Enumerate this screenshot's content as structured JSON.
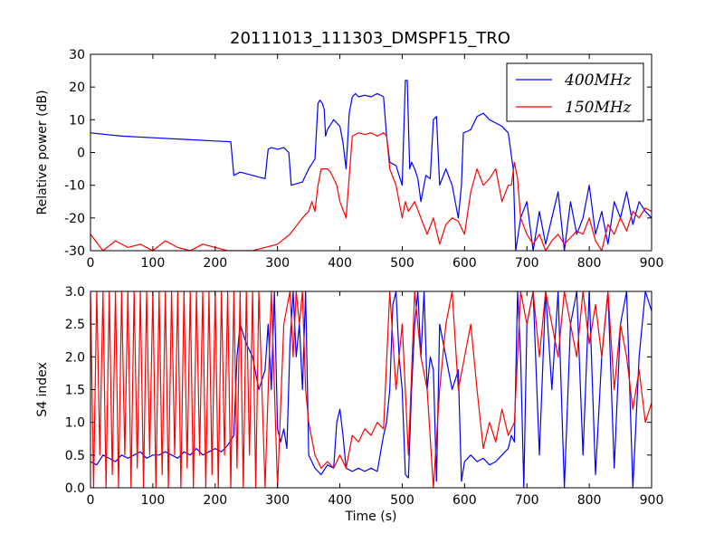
{
  "chart_data": [
    {
      "type": "line",
      "title": "20111013_111303_DMSPF15_TRO",
      "xlabel": "",
      "ylabel": "Relative power (dB)",
      "xlim": [
        0,
        900
      ],
      "ylim": [
        -30,
        30
      ],
      "xticks": [
        0,
        100,
        200,
        300,
        400,
        500,
        600,
        700,
        800,
        900
      ],
      "yticks": [
        -30,
        -20,
        -10,
        0,
        10,
        20,
        30
      ],
      "grid": false,
      "legend": "top-right",
      "series": [
        {
          "name": "400MHz",
          "color": "#0000ff",
          "x": [
            0,
            50,
            100,
            150,
            200,
            225,
            230,
            240,
            260,
            280,
            285,
            290,
            300,
            310,
            318,
            322,
            340,
            350,
            360,
            365,
            368,
            372,
            375,
            377,
            380,
            390,
            400,
            405,
            410,
            415,
            420,
            425,
            430,
            440,
            450,
            460,
            470,
            475,
            480,
            490,
            500,
            505,
            508,
            512,
            515,
            520,
            525,
            530,
            538,
            545,
            550,
            555,
            560,
            570,
            580,
            590,
            595,
            598,
            605,
            610,
            620,
            630,
            640,
            650,
            660,
            670,
            678,
            682,
            686,
            690,
            700,
            710,
            720,
            730,
            740,
            750,
            760,
            770,
            780,
            790,
            800,
            810,
            820,
            830,
            840,
            850,
            860,
            870,
            880,
            890,
            900
          ],
          "y": [
            6,
            5,
            4.5,
            4,
            3.5,
            3.3,
            -7,
            -6,
            -7,
            -8,
            1,
            1.5,
            1,
            1.5,
            0,
            -10,
            -9,
            -5,
            -2,
            15,
            16,
            15,
            13,
            5,
            7,
            10,
            8,
            3,
            -5,
            12,
            17,
            18,
            17,
            17.5,
            17,
            18,
            17,
            5,
            -3,
            -4,
            -10,
            22,
            22,
            -5,
            -3,
            -5,
            -8,
            -15,
            -7,
            -8,
            10,
            11,
            -10,
            -5,
            -10,
            -20,
            -10,
            6,
            6.5,
            7,
            11,
            12,
            10,
            9,
            8,
            6,
            -5,
            -30,
            -25,
            -20,
            -15,
            -30,
            -18,
            -28,
            -20,
            -12,
            -30,
            -15,
            -25,
            -20,
            -10,
            -25,
            -18,
            -28,
            -15,
            -20,
            -12,
            -22,
            -15,
            -18,
            -20
          ]
        },
        {
          "name": "150MHz",
          "color": "#ff0000",
          "x": [
            0,
            20,
            40,
            60,
            80,
            100,
            120,
            140,
            160,
            180,
            200,
            220,
            240,
            260,
            280,
            300,
            320,
            340,
            350,
            355,
            360,
            365,
            370,
            380,
            385,
            390,
            395,
            400,
            410,
            420,
            430,
            440,
            450,
            460,
            470,
            475,
            480,
            490,
            500,
            505,
            510,
            520,
            530,
            540,
            550,
            560,
            570,
            580,
            590,
            600,
            610,
            620,
            630,
            640,
            650,
            660,
            670,
            675,
            680,
            685,
            690,
            700,
            710,
            720,
            730,
            740,
            750,
            760,
            770,
            780,
            790,
            800,
            810,
            820,
            830,
            840,
            850,
            860,
            870,
            880,
            890,
            900
          ],
          "y": [
            -25,
            -30,
            -27,
            -29,
            -28,
            -30,
            -27,
            -29,
            -30,
            -28,
            -29,
            -30,
            -30,
            -30,
            -29,
            -28,
            -25,
            -20,
            -18,
            -15,
            -18,
            -10,
            -5,
            -5,
            -6,
            -8,
            -10,
            -15,
            -20,
            5,
            6,
            5.5,
            6,
            5,
            6,
            5,
            -5,
            -10,
            -20,
            -15,
            -18,
            -15,
            -20,
            -25,
            -20,
            -28,
            -22,
            -20,
            -21,
            -25,
            -12,
            -5,
            -10,
            -8,
            -5,
            -15,
            -10,
            -10,
            -3,
            -8,
            -20,
            -25,
            -28,
            -25,
            -30,
            -27,
            -25,
            -28,
            -26,
            -24,
            -25,
            -20,
            -27,
            -30,
            -22,
            -25,
            -20,
            -24,
            -18,
            -20,
            -17,
            -18
          ]
        }
      ]
    },
    {
      "type": "line",
      "title": "",
      "xlabel": "Time (s)",
      "ylabel": "S4 index",
      "xlim": [
        0,
        900
      ],
      "ylim": [
        0,
        3
      ],
      "xticks": [
        0,
        100,
        200,
        300,
        400,
        500,
        600,
        700,
        800,
        900
      ],
      "yticks": [
        "0.0",
        "0.5",
        "1.0",
        "1.5",
        "2.0",
        "2.5",
        "3.0"
      ],
      "grid": false,
      "series": [
        {
          "name": "400MHz",
          "color": "#0000ff",
          "x": [
            0,
            10,
            20,
            30,
            40,
            50,
            60,
            70,
            80,
            90,
            100,
            110,
            120,
            130,
            140,
            150,
            160,
            170,
            180,
            190,
            200,
            210,
            220,
            230,
            235,
            240,
            250,
            260,
            270,
            280,
            285,
            290,
            295,
            300,
            305,
            310,
            315,
            320,
            325,
            330,
            335,
            340,
            345,
            350,
            360,
            370,
            380,
            390,
            395,
            400,
            405,
            410,
            420,
            430,
            440,
            450,
            460,
            470,
            475,
            480,
            485,
            490,
            495,
            500,
            505,
            510,
            515,
            520,
            525,
            530,
            535,
            540,
            545,
            550,
            555,
            560,
            570,
            580,
            590,
            595,
            600,
            610,
            620,
            630,
            640,
            650,
            660,
            670,
            675,
            680,
            685,
            690,
            695,
            700,
            710,
            720,
            730,
            740,
            750,
            760,
            770,
            780,
            790,
            800,
            810,
            820,
            830,
            840,
            850,
            860,
            870,
            880,
            890,
            900
          ],
          "y": [
            0.4,
            0.35,
            0.5,
            0.45,
            0.4,
            0.5,
            0.45,
            0.5,
            0.55,
            0.45,
            0.5,
            0.5,
            0.55,
            0.5,
            0.45,
            0.55,
            0.5,
            0.6,
            0.5,
            0.55,
            0.6,
            0.55,
            0.65,
            0.8,
            2.0,
            2.5,
            2.2,
            2.0,
            1.5,
            1.8,
            2.5,
            1.5,
            3.0,
            0.9,
            0.7,
            0.9,
            0.6,
            2.2,
            3.0,
            2.0,
            2.5,
            1.5,
            3.0,
            0.5,
            0.3,
            0.2,
            0.35,
            0.3,
            1.0,
            1.2,
            0.8,
            0.3,
            0.25,
            0.3,
            0.25,
            0.3,
            0.25,
            0.8,
            1.0,
            1.5,
            2.8,
            3.0,
            2.0,
            1.5,
            0.2,
            0.15,
            1.5,
            2.5,
            3.0,
            2.0,
            3.0,
            1.5,
            2.0,
            1.8,
            0.1,
            2.5,
            2.0,
            1.5,
            1.8,
            0.1,
            0.4,
            0.5,
            0.4,
            0.45,
            0.35,
            0.4,
            0.5,
            0.6,
            0.8,
            0.7,
            3.0,
            2.0,
            0.0,
            2.5,
            3.0,
            0.5,
            3.0,
            1.5,
            3.0,
            0.0,
            2.5,
            3.0,
            0.5,
            3.0,
            0.2,
            2.0,
            3.0,
            0.3,
            2.5,
            3.0,
            0.0,
            2.0,
            3.0,
            2.7
          ]
        },
        {
          "name": "150MHz",
          "color": "#ff0000",
          "x": [
            0,
            5,
            10,
            15,
            20,
            25,
            30,
            35,
            40,
            45,
            50,
            55,
            60,
            65,
            70,
            75,
            80,
            85,
            90,
            95,
            100,
            105,
            110,
            115,
            120,
            125,
            130,
            135,
            140,
            145,
            150,
            155,
            160,
            165,
            170,
            175,
            180,
            185,
            190,
            195,
            200,
            205,
            210,
            215,
            220,
            225,
            230,
            235,
            240,
            245,
            250,
            255,
            260,
            265,
            270,
            280,
            290,
            300,
            310,
            320,
            325,
            330,
            335,
            340,
            345,
            350,
            360,
            370,
            380,
            390,
            400,
            410,
            420,
            430,
            440,
            450,
            460,
            470,
            480,
            490,
            500,
            510,
            520,
            530,
            540,
            550,
            560,
            570,
            580,
            590,
            600,
            610,
            620,
            630,
            640,
            650,
            660,
            670,
            680,
            690,
            700,
            710,
            720,
            730,
            740,
            750,
            760,
            770,
            780,
            790,
            800,
            810,
            820,
            830,
            840,
            850,
            860,
            870,
            880,
            890,
            900
          ],
          "y": [
            3.0,
            0.0,
            3.0,
            0.5,
            3.0,
            0.0,
            3.0,
            0.2,
            3.0,
            0.0,
            3.0,
            0.5,
            3.0,
            0.0,
            3.0,
            0.3,
            3.0,
            0.0,
            3.0,
            0.5,
            3.0,
            0.0,
            3.0,
            0.2,
            3.0,
            0.0,
            3.0,
            0.5,
            3.0,
            0.0,
            3.0,
            0.3,
            3.0,
            0.0,
            3.0,
            0.5,
            3.0,
            0.0,
            3.0,
            0.2,
            3.0,
            0.0,
            3.0,
            0.5,
            3.0,
            0.0,
            3.0,
            0.3,
            3.0,
            0.0,
            3.0,
            0.5,
            3.0,
            0.0,
            3.0,
            0.0,
            3.0,
            0.0,
            2.5,
            3.0,
            2.0,
            3.0,
            2.5,
            3.0,
            1.5,
            1.0,
            0.5,
            0.3,
            0.4,
            0.3,
            0.5,
            0.3,
            0.8,
            0.7,
            0.9,
            0.8,
            1.0,
            0.9,
            3.0,
            1.5,
            2.5,
            0.5,
            3.0,
            2.0,
            1.5,
            0.0,
            1.5,
            2.5,
            3.0,
            1.5,
            2.0,
            2.5,
            1.5,
            0.6,
            1.0,
            0.7,
            1.2,
            0.8,
            1.0,
            3.0,
            2.5,
            3.0,
            2.0,
            3.0,
            2.5,
            2.0,
            3.0,
            2.5,
            2.0,
            3.0,
            2.2,
            2.8,
            2.0,
            3.0,
            1.5,
            2.5,
            2.0,
            1.2,
            1.8,
            1.0,
            1.3
          ]
        }
      ]
    }
  ]
}
